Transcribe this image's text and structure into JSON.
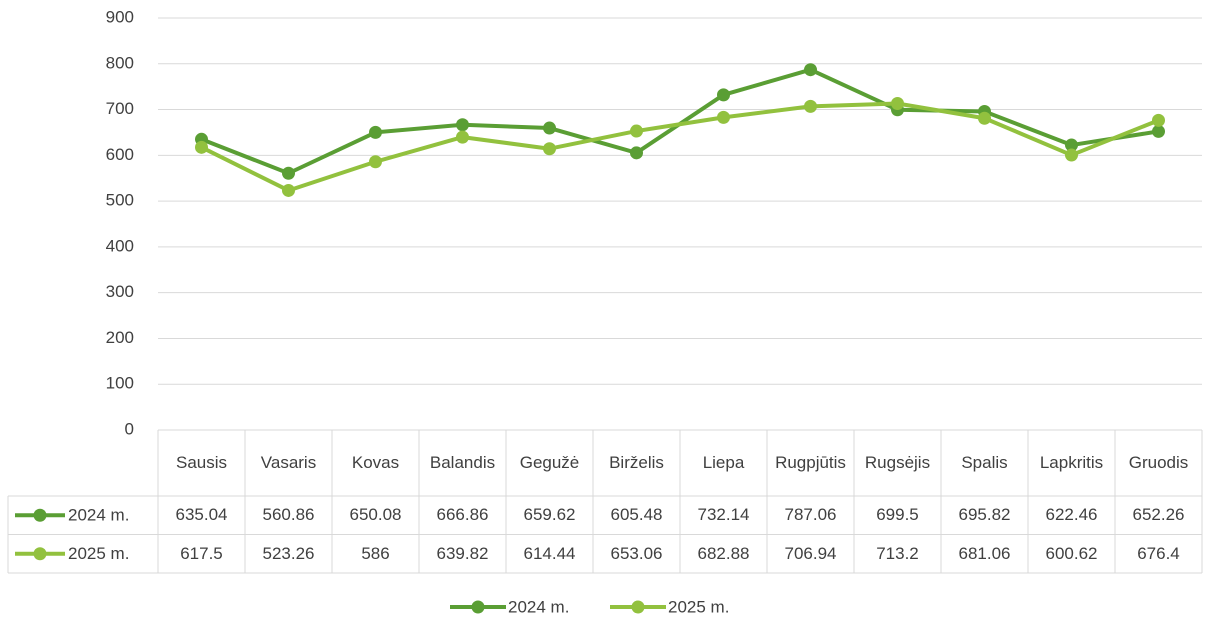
{
  "chart_data": {
    "type": "line",
    "categories": [
      "Sausis",
      "Vasaris",
      "Kovas",
      "Balandis",
      "Gegužė",
      "Birželis",
      "Liepa",
      "Rugpjūtis",
      "Rugsėjis",
      "Spalis",
      "Lapkritis",
      "Gruodis"
    ],
    "series": [
      {
        "name": "2024 m.",
        "color": "#5a9e34",
        "values": [
          635.04,
          560.86,
          650.08,
          666.86,
          659.62,
          605.48,
          732.14,
          787.06,
          699.5,
          695.82,
          622.46,
          652.26
        ]
      },
      {
        "name": "2025 m.",
        "color": "#92c13e",
        "values": [
          617.5,
          523.26,
          586,
          639.82,
          614.44,
          653.06,
          682.88,
          706.94,
          713.2,
          681.06,
          600.62,
          676.4
        ]
      }
    ],
    "ylim": [
      0,
      900
    ],
    "yticks": [
      0,
      100,
      200,
      300,
      400,
      500,
      600,
      700,
      800,
      900
    ],
    "grid": true,
    "data_table": true,
    "legend": "bottom"
  }
}
